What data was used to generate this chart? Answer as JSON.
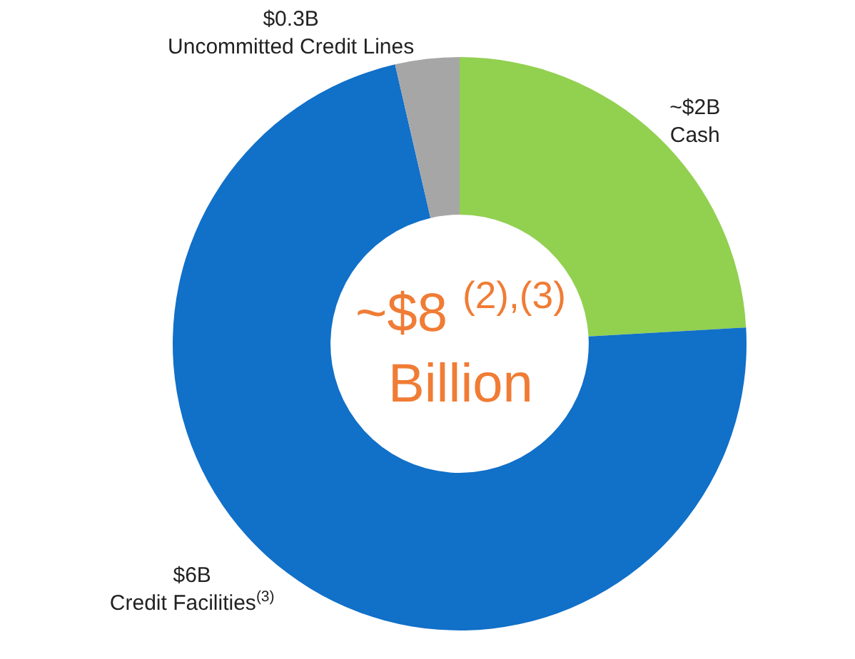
{
  "chart_data": {
    "type": "donut",
    "categories": [
      "Cash",
      "Credit Facilities$^{(3)}$",
      "Uncommitted Credit Lines"
    ],
    "values": [
      2,
      6,
      0.3
    ],
    "value_labels": [
      "~$2B",
      "$6B",
      "$0.3B"
    ],
    "colors": [
      "#92d050",
      "#1170c8",
      "#a6a6a6"
    ],
    "annotations": [
      "~$8 $^{(2),(3)}$\nBillion"
    ],
    "legend": false
  }
}
